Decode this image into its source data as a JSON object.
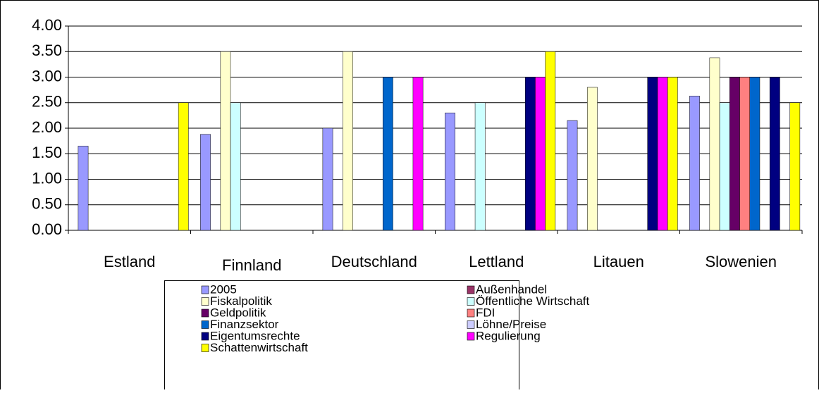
{
  "chart_data": {
    "type": "bar",
    "categories": [
      "Estland",
      "Finnland",
      "Deutschland",
      "Lettland",
      "Litauen",
      "Slowenien"
    ],
    "series": [
      {
        "name": "2005",
        "color": "#9999ff",
        "values": [
          1.65,
          1.88,
          2.0,
          2.3,
          2.15,
          2.63
        ]
      },
      {
        "name": "Außenhandel",
        "color": "#993366",
        "values": [
          null,
          null,
          null,
          null,
          null,
          null
        ]
      },
      {
        "name": "Fiskalpolitik",
        "color": "#ffffcc",
        "values": [
          null,
          3.5,
          3.5,
          null,
          2.8,
          3.38
        ]
      },
      {
        "name": "Öffentliche Wirtschaft",
        "color": "#ccffff",
        "values": [
          null,
          2.5,
          null,
          2.5,
          null,
          2.5
        ]
      },
      {
        "name": "Geldpolitik",
        "color": "#660066",
        "values": [
          null,
          null,
          null,
          null,
          null,
          3.0
        ]
      },
      {
        "name": "FDI",
        "color": "#ff8080",
        "values": [
          null,
          null,
          null,
          null,
          null,
          3.0
        ]
      },
      {
        "name": "Finanzsektor",
        "color": "#0066cc",
        "values": [
          null,
          null,
          3.0,
          null,
          null,
          3.0
        ]
      },
      {
        "name": "Löhne/Preise",
        "color": "#ccccff",
        "values": [
          null,
          null,
          null,
          null,
          null,
          null
        ]
      },
      {
        "name": "Eigentumsrechte",
        "color": "#000080",
        "values": [
          null,
          null,
          null,
          3.0,
          3.0,
          3.0
        ]
      },
      {
        "name": "Regulierung",
        "color": "#ff00ff",
        "values": [
          null,
          null,
          3.0,
          3.0,
          3.0,
          null
        ]
      },
      {
        "name": "Schattenwirtschaft",
        "color": "#ffff00",
        "values": [
          2.5,
          null,
          null,
          3.5,
          3.0,
          2.5
        ]
      }
    ],
    "ylim": [
      0,
      4
    ],
    "yticks": [
      {
        "value": 0,
        "label": "0.00"
      },
      {
        "value": 0.5,
        "label": "0.50"
      },
      {
        "value": 1,
        "label": "1.00"
      },
      {
        "value": 1.5,
        "label": "1.50"
      },
      {
        "value": 2,
        "label": "2.00"
      },
      {
        "value": 2.5,
        "label": "2.50"
      },
      {
        "value": 3,
        "label": "3.00"
      },
      {
        "value": 3.5,
        "label": "3.50"
      },
      {
        "value": 4,
        "label": "4.00"
      }
    ],
    "grid": true,
    "legend": "bottom"
  }
}
